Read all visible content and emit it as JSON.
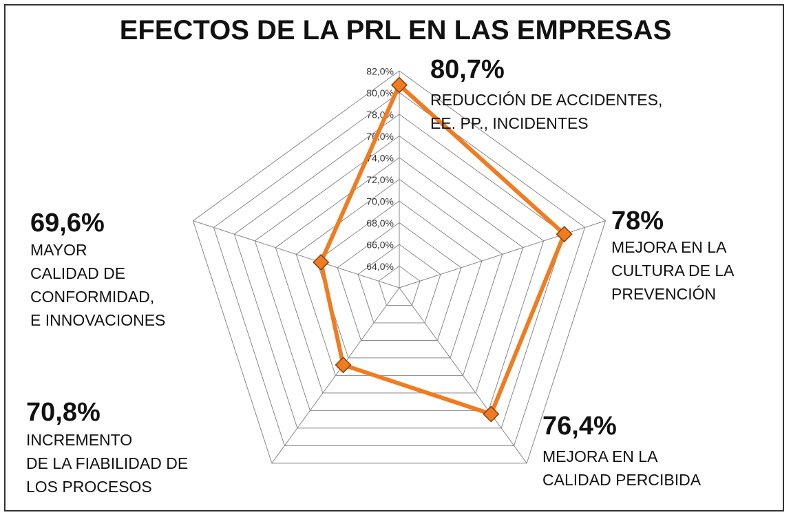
{
  "chart_data": {
    "type": "radar",
    "title": "EFECTOS DE LA PRL EN LAS EMPRESAS",
    "categories": [
      "REDUCCIÓN DE ACCIDENTES,\nEE. PP., INCIDENTES",
      "MEJORA EN LA\nCULTURA DE LA\nPREVENCIÓN",
      "MEJORA EN LA\nCALIDAD PERCIBIDA",
      "INCREMENTO\nDE LA FIABILIDAD DE\nLOS PROCESOS",
      "MAYOR\nCALIDAD DE\nCONFORMIDAD,\nE INNOVACIONES"
    ],
    "values": [
      80.7,
      78,
      76.4,
      70.8,
      69.6
    ],
    "value_labels": [
      "80,7%",
      "78%",
      "76,4%",
      "70,8%",
      "69,6%"
    ],
    "color": "#f07c22",
    "rlim": [
      62,
      82
    ],
    "rticks": [
      {
        "value": 64,
        "label": "64,0%"
      },
      {
        "value": 66,
        "label": "66,0%"
      },
      {
        "value": 68,
        "label": "68,0%"
      },
      {
        "value": 70,
        "label": "70,0%"
      },
      {
        "value": 72,
        "label": "72,0%"
      },
      {
        "value": 74,
        "label": "74,0%"
      },
      {
        "value": 76,
        "label": "76,0%"
      },
      {
        "value": 78,
        "label": "78,0%"
      },
      {
        "value": 80,
        "label": "80,0%"
      },
      {
        "value": 82,
        "label": "82,0%"
      }
    ],
    "grid": true
  }
}
